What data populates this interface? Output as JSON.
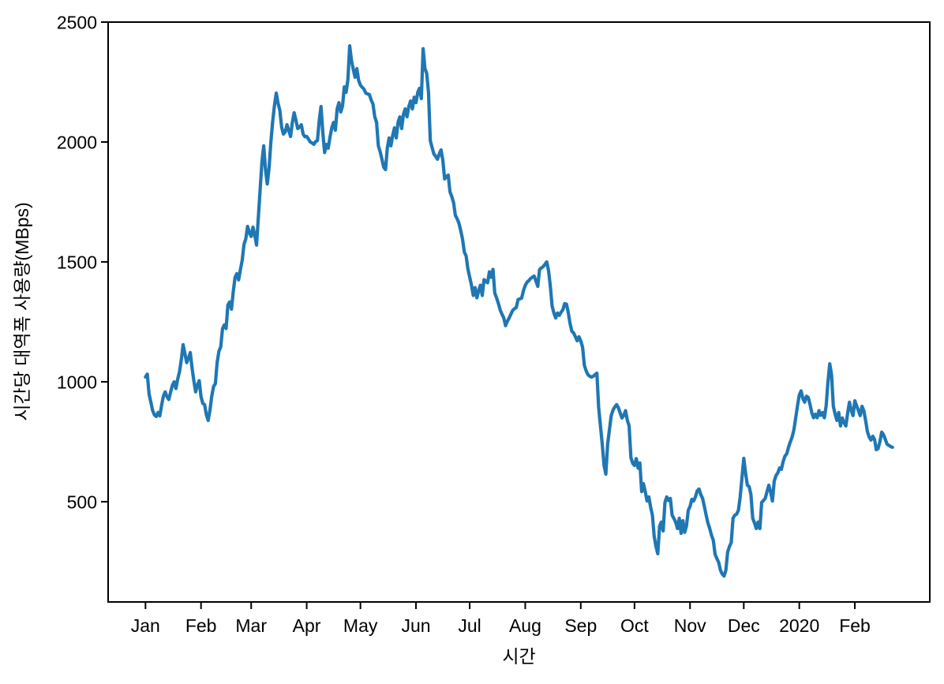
{
  "figure": {
    "background": "#ffffff",
    "axis_color": "#000000",
    "line_color": "#1f77b4"
  },
  "chart_data": {
    "type": "line",
    "title": "",
    "xlabel": "시간",
    "ylabel": "시간당 대역폭 사용량(MBps)",
    "grid": false,
    "legend": null,
    "x_unit": "days since first sample (daily series, Jan 2019 - late Feb 2020)",
    "xlim": [
      -20.85,
      437.85
    ],
    "ylim": [
      82,
      2500
    ],
    "x_tick_days": [
      0,
      31,
      59,
      90,
      120,
      151,
      181,
      212,
      243,
      273,
      304,
      334,
      365,
      396
    ],
    "x_tick_labels": [
      "Jan",
      "Feb",
      "Mar",
      "Apr",
      "May",
      "Jun",
      "Jul",
      "Aug",
      "Sep",
      "Oct",
      "Nov",
      "Dec",
      "2020",
      "Feb"
    ],
    "y_ticks": [
      500,
      1000,
      1500,
      2000,
      2500
    ],
    "y_tick_labels": [
      "500",
      "1000",
      "1500",
      "2000",
      "2500"
    ],
    "series": [
      {
        "name": "시간당 대역폭 사용량",
        "color": "#1f77b4",
        "start_day": 0,
        "values_daily": [
          1020,
          1032,
          950,
          915,
          880,
          862,
          855,
          872,
          858,
          902,
          940,
          958,
          938,
          926,
          956,
          985,
          1000,
          972,
          1012,
          1042,
          1092,
          1155,
          1118,
          1080,
          1098,
          1122,
          1058,
          1005,
          958,
          986,
          1005,
          938,
          910,
          905,
          862,
          839,
          882,
          940,
          980,
          992,
          1080,
          1128,
          1145,
          1221,
          1237,
          1222,
          1320,
          1333,
          1303,
          1376,
          1435,
          1451,
          1425,
          1468,
          1507,
          1573,
          1596,
          1648,
          1622,
          1606,
          1645,
          1612,
          1570,
          1685,
          1800,
          1915,
          1984,
          1885,
          1825,
          1892,
          2000,
          2085,
          2152,
          2204,
          2162,
          2132,
          2062,
          2033,
          2042,
          2072,
          2048,
          2023,
          2082,
          2122,
          2090,
          2056,
          2062,
          2072,
          2033,
          2022,
          2023,
          2012,
          2000,
          1996,
          1990,
          2002,
          2006,
          2090,
          2148,
          2040,
          1956,
          1990,
          1974,
          2020,
          2059,
          2082,
          2049,
          2138,
          2164,
          2125,
          2150,
          2230,
          2207,
          2260,
          2401,
          2340,
          2303,
          2270,
          2306,
          2257,
          2237,
          2228,
          2220,
          2204,
          2200,
          2198,
          2175,
          2158,
          2105,
          2082,
          1984,
          1960,
          1928,
          1895,
          1885,
          1974,
          2017,
          1984,
          2027,
          2059,
          2017,
          2082,
          2105,
          2056,
          2115,
          2138,
          2105,
          2148,
          2171,
          2138,
          2187,
          2164,
          2207,
          2224,
          2181,
          2389,
          2307,
          2286,
          2207,
          2006,
          1977,
          1950,
          1940,
          1928,
          1950,
          1967,
          1924,
          1846,
          1855,
          1862,
          1792,
          1772,
          1747,
          1694,
          1680,
          1661,
          1630,
          1595,
          1541,
          1525,
          1470,
          1436,
          1403,
          1360,
          1393,
          1350,
          1380,
          1403,
          1360,
          1426,
          1420,
          1413,
          1459,
          1436,
          1469,
          1370,
          1350,
          1327,
          1300,
          1282,
          1267,
          1234,
          1252,
          1266,
          1282,
          1298,
          1305,
          1310,
          1343,
          1346,
          1349,
          1380,
          1402,
          1415,
          1422,
          1431,
          1436,
          1441,
          1420,
          1398,
          1468,
          1475,
          1480,
          1490,
          1500,
          1464,
          1400,
          1316,
          1287,
          1266,
          1287,
          1277,
          1290,
          1300,
          1326,
          1324,
          1290,
          1244,
          1211,
          1204,
          1188,
          1171,
          1188,
          1170,
          1145,
          1069,
          1046,
          1030,
          1023,
          1020,
          1023,
          1030,
          1036,
          892,
          816,
          740,
          651,
          615,
          740,
          800,
          859,
          882,
          895,
          905,
          892,
          870,
          849,
          860,
          880,
          840,
          816,
          684,
          660,
          651,
          680,
          640,
          662,
          542,
          575,
          542,
          503,
          520,
          477,
          444,
          355,
          313,
          283,
          398,
          415,
          378,
          497,
          520,
          505,
          514,
          444,
          430,
          415,
          388,
          431,
          368,
          421,
          372,
          398,
          464,
          480,
          510,
          503,
          520,
          545,
          553,
          530,
          514,
          480,
          444,
          411,
          388,
          360,
          339,
          280,
          263,
          247,
          214,
          198,
          190,
          214,
          290,
          313,
          329,
          431,
          444,
          448,
          464,
          520,
          600,
          681,
          620,
          569,
          563,
          530,
          431,
          411,
          388,
          415,
          388,
          497,
          505,
          514,
          543,
          569,
          540,
          503,
          586,
          609,
          620,
          641,
          635,
          668,
          690,
          700,
          727,
          750,
          770,
          800,
          850,
          900,
          945,
          962,
          930,
          915,
          940,
          935,
          905,
          870,
          850,
          865,
          850,
          880,
          860,
          872,
          850,
          900,
          1000,
          1075,
          1030,
          898,
          865,
          839,
          872,
          816,
          849,
          830,
          816,
          870,
          915,
          880,
          859,
          921,
          900,
          880,
          859,
          898,
          880,
          840,
          793,
          770,
          757,
          773,
          760,
          717,
          722,
          750,
          790,
          780,
          760,
          740,
          735,
          730,
          727
        ]
      }
    ]
  }
}
